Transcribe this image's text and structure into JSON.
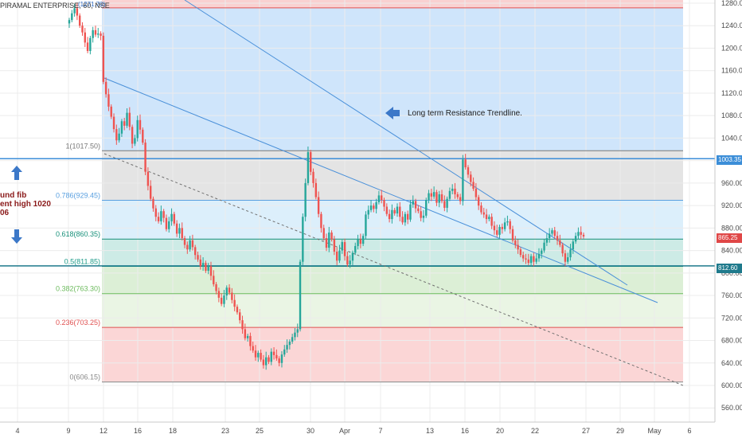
{
  "symbol": {
    "title": "PIRAMAL ENTERPRISE, 60, NSE",
    "high_label": "(1271.70)"
  },
  "left_note": {
    "line1": "und fib",
    "line2": "ent high 1020",
    "line3": "06"
  },
  "annotation": {
    "text": "Long term Resistance Trendline."
  },
  "price_axis": {
    "ticks": [
      "1280.00",
      "1240.00",
      "1200.00",
      "1160.00",
      "1120.00",
      "1080.00",
      "1040.00",
      "1000.00",
      "960.00",
      "920.00",
      "880.00",
      "840.00",
      "800.00",
      "760.00",
      "720.00",
      "680.00",
      "640.00",
      "600.00",
      "560.00"
    ],
    "tag_1003": "1003.35",
    "tag_865": "865.25",
    "tag_812": "812.60"
  },
  "time_axis": {
    "labels": [
      "4",
      "9",
      "12",
      "16",
      "18",
      "23",
      "25",
      "30",
      "Apr",
      "7",
      "13",
      "16",
      "20",
      "22",
      "27",
      "29",
      "May",
      "6"
    ]
  },
  "fib_levels": [
    {
      "label": "1(1017.50)",
      "price": 1017.5,
      "color": "#787878"
    },
    {
      "label": "0.786(929.45)",
      "price": 929.45,
      "color": "#5aa0e0"
    },
    {
      "label": "0.618(860.35)",
      "price": 860.35,
      "color": "#17907a"
    },
    {
      "label": "0.5(811.85)",
      "price": 811.85,
      "color": "#1f9c8a"
    },
    {
      "label": "0.382(763.30)",
      "price": 763.3,
      "color": "#6dbb5e"
    },
    {
      "label": "0.236(703.25)",
      "price": 703.25,
      "color": "#e05050"
    },
    {
      "label": "0(606.15)",
      "price": 606.15,
      "color": "#888888"
    }
  ],
  "chart_data": {
    "type": "candlestick",
    "title": "PIRAMAL ENTERPRISE, 60, NSE",
    "y_range": [
      545,
      1290
    ],
    "fib_retracement_range": [
      606.15,
      1271.7
    ],
    "horizontal_lines": [
      1003.35,
      812.6
    ],
    "last_price": 865.25,
    "closes": [
      1250,
      1262,
      1271,
      1258,
      1240,
      1228,
      1210,
      1195,
      1218,
      1232,
      1224,
      1226,
      1222,
      1140,
      1118,
      1096,
      1078,
      1056,
      1036,
      1048,
      1070,
      1062,
      1085,
      1060,
      1030,
      1040,
      1072,
      1055,
      1032,
      980,
      955,
      932,
      915,
      900,
      892,
      910,
      898,
      878,
      892,
      905,
      888,
      870,
      880,
      862,
      850,
      842,
      858,
      846,
      832,
      824,
      812,
      818,
      804,
      812,
      795,
      780,
      768,
      756,
      745,
      760,
      774,
      765,
      752,
      740,
      730,
      716,
      700,
      684,
      688,
      670,
      662,
      650,
      658,
      646,
      636,
      650,
      642,
      660,
      654,
      648,
      640,
      655,
      664,
      672,
      678,
      686,
      694,
      700,
      820,
      900,
      960,
      1015,
      980,
      960,
      935,
      905,
      880,
      862,
      845,
      872,
      860,
      838,
      822,
      840,
      855,
      830,
      815,
      822,
      836,
      848,
      860,
      852,
      866,
      904,
      912,
      920,
      914,
      926,
      938,
      930,
      918,
      905,
      896,
      912,
      906,
      918,
      900,
      890,
      905,
      895,
      922,
      928,
      915,
      910,
      898,
      902,
      930,
      942,
      936,
      944,
      925,
      940,
      928,
      916,
      932,
      946,
      950,
      940,
      935,
      928,
      1002,
      988,
      975,
      962,
      950,
      935,
      920,
      908,
      904,
      896,
      900,
      884,
      876,
      868,
      882,
      878,
      890,
      892,
      878,
      858,
      850,
      842,
      832,
      826,
      824,
      818,
      830,
      820,
      826,
      834,
      840,
      854,
      862,
      870,
      876,
      866,
      858,
      850,
      835,
      820,
      828,
      842,
      856,
      866,
      873,
      868,
      865
    ]
  }
}
